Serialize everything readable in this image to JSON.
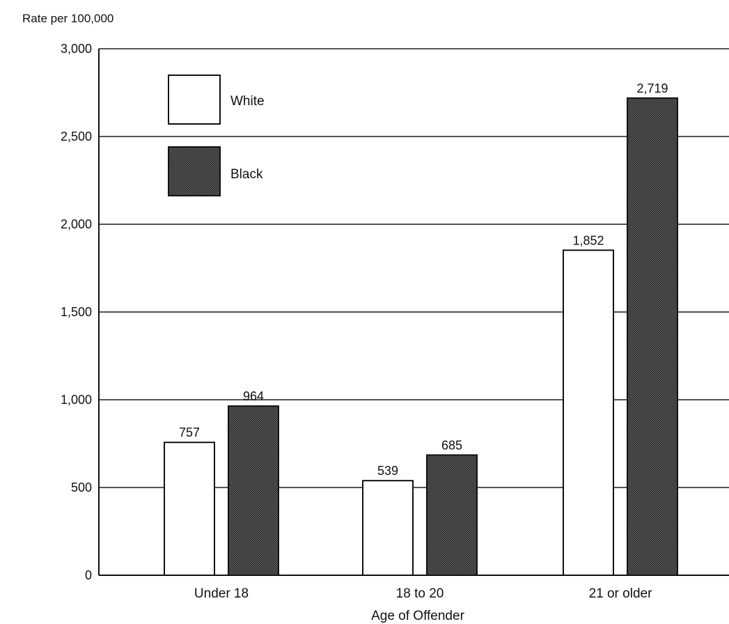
{
  "chart_data": {
    "type": "bar",
    "title": "",
    "xlabel": "Age of Offender",
    "ylabel": "Rate per 100,000",
    "ylim": [
      0,
      3000
    ],
    "yticks": [
      0,
      500,
      1000,
      1500,
      2000,
      2500,
      3000
    ],
    "ytick_labels": [
      "0",
      "500",
      "1,000",
      "1,500",
      "2,000",
      "2,500",
      "3,000"
    ],
    "categories": [
      "Under 18",
      "18 to 20",
      "21 or older"
    ],
    "series": [
      {
        "name": "White",
        "values": [
          757,
          539,
          1852
        ],
        "labels": [
          "757",
          "539",
          "1,852"
        ],
        "color": "#ffffff"
      },
      {
        "name": "Black",
        "values": [
          964,
          685,
          2719
        ],
        "labels": [
          "964",
          "685",
          "2,719"
        ],
        "color": "#4a4a4a"
      }
    ],
    "grid": true,
    "legend_position": "top-left"
  }
}
